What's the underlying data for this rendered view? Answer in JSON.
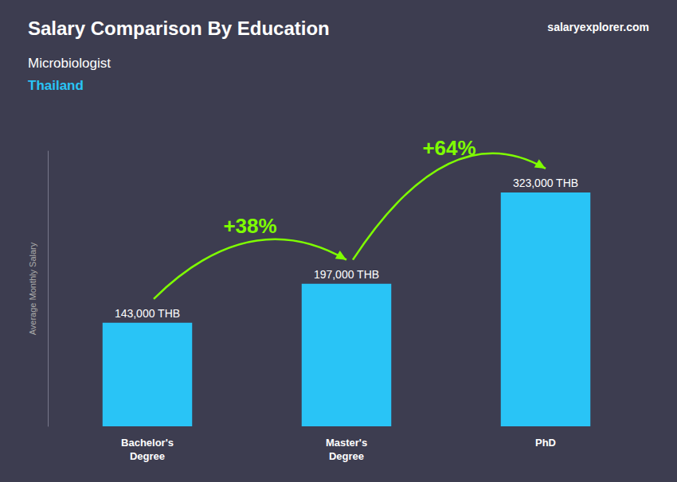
{
  "chart_data": {
    "type": "bar",
    "title": "Salary Comparison By Education",
    "subtitle": "Microbiologist",
    "country": "Thailand",
    "source": "salaryexplorer.com",
    "categories": [
      "Bachelor's\nDegree",
      "Master's\nDegree",
      "PhD"
    ],
    "values": [
      143000,
      197000,
      323000
    ],
    "value_labels": [
      "143,000 THB",
      "197,000 THB",
      "323,000 THB"
    ],
    "data_labels": true,
    "color": "#29c4f6",
    "ylabel": "Average Monthly Salary",
    "ylim": [
      0,
      380000
    ],
    "tick_labels": "x",
    "grid": false,
    "annotations": [
      {
        "text": "+38%",
        "color": "#7fff00"
      },
      {
        "text": "+64%",
        "color": "#7fff00"
      }
    ]
  }
}
